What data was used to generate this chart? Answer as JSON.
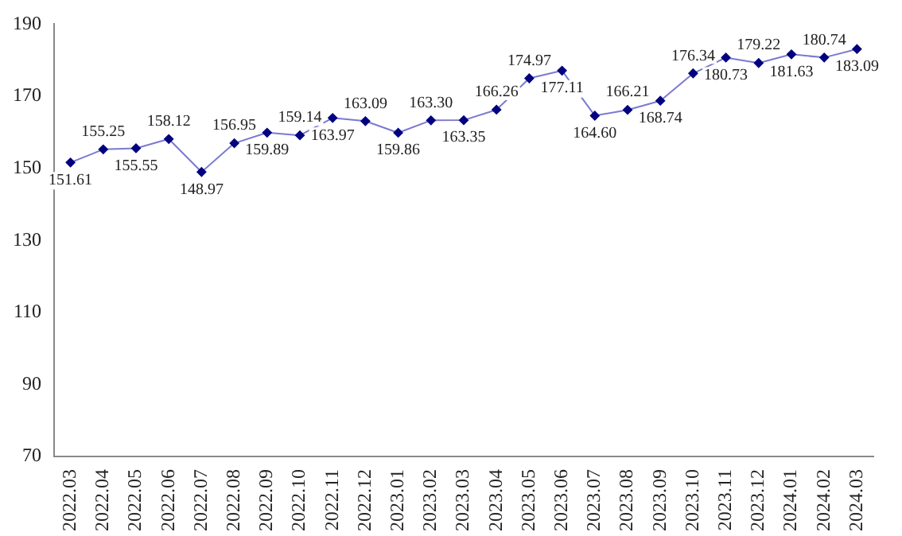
{
  "chart_data": {
    "type": "line",
    "categories": [
      "2022.03",
      "2022.04",
      "2022.05",
      "2022.06",
      "2022.07",
      "2022.08",
      "2022.09",
      "2022.10",
      "2022.11",
      "2022.12",
      "2023.01",
      "2023.02",
      "2023.03",
      "2023.04",
      "2023.05",
      "2023.06",
      "2023.07",
      "2023.08",
      "2023.09",
      "2023.10",
      "2023.11",
      "2023.12",
      "2024.01",
      "2024.02",
      "2024.03"
    ],
    "series": [
      {
        "color": "#000080",
        "values": [
          151.61,
          155.25,
          155.55,
          158.12,
          148.97,
          156.95,
          159.89,
          159.14,
          163.97,
          163.09,
          159.86,
          163.3,
          163.35,
          166.26,
          174.97,
          177.11,
          164.6,
          166.21,
          168.74,
          176.34,
          180.73,
          179.22,
          181.63,
          180.74,
          183.09
        ],
        "value_labels": [
          "151.61",
          "155.25",
          "155.55",
          "158.12",
          "148.97",
          "156.95",
          "159.89",
          "159.14",
          "163.97",
          "163.09",
          "159.86",
          "163.30",
          "163.35",
          "166.26",
          "174.97",
          "177.11",
          "164.60",
          "166.21",
          "168.74",
          "176.34",
          "180.73",
          "179.22",
          "181.63",
          "180.74",
          "183.09"
        ]
      }
    ],
    "ylim": [
      70,
      190
    ],
    "yticks": [
      70,
      90,
      110,
      130,
      150,
      170,
      190
    ],
    "grid": false,
    "legend": false,
    "marker": "diamond",
    "line_style": "solid"
  }
}
